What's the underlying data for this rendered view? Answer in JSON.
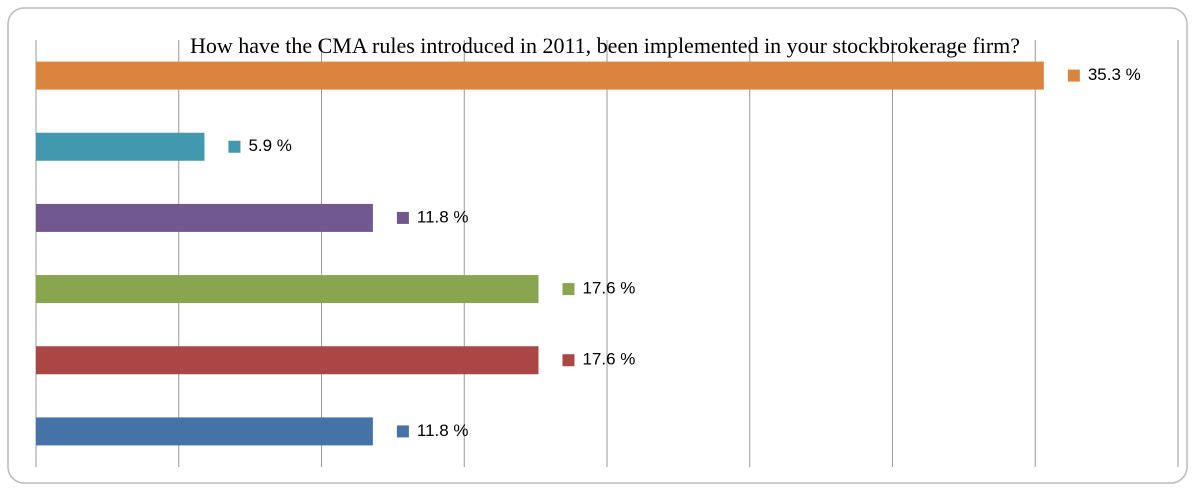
{
  "chart_data": {
    "type": "bar",
    "orientation": "horizontal",
    "title": "How have the CMA rules introduced in 2011, been implemented in your stockbrokerage firm?",
    "values": [
      11.8,
      17.6,
      17.6,
      11.8,
      5.9,
      35.3
    ],
    "value_labels": [
      "11.8 %",
      "17.6 %",
      "17.6 %",
      "11.8 %",
      "5.9 %",
      "35.3 %"
    ],
    "colors": [
      "#4572a7",
      "#aa4643",
      "#89a54e",
      "#71588f",
      "#4198af",
      "#db843d"
    ],
    "xlim": [
      0,
      40
    ],
    "xticks": [
      0,
      5,
      10,
      15,
      20,
      25,
      30,
      35,
      40
    ],
    "grid": true
  }
}
